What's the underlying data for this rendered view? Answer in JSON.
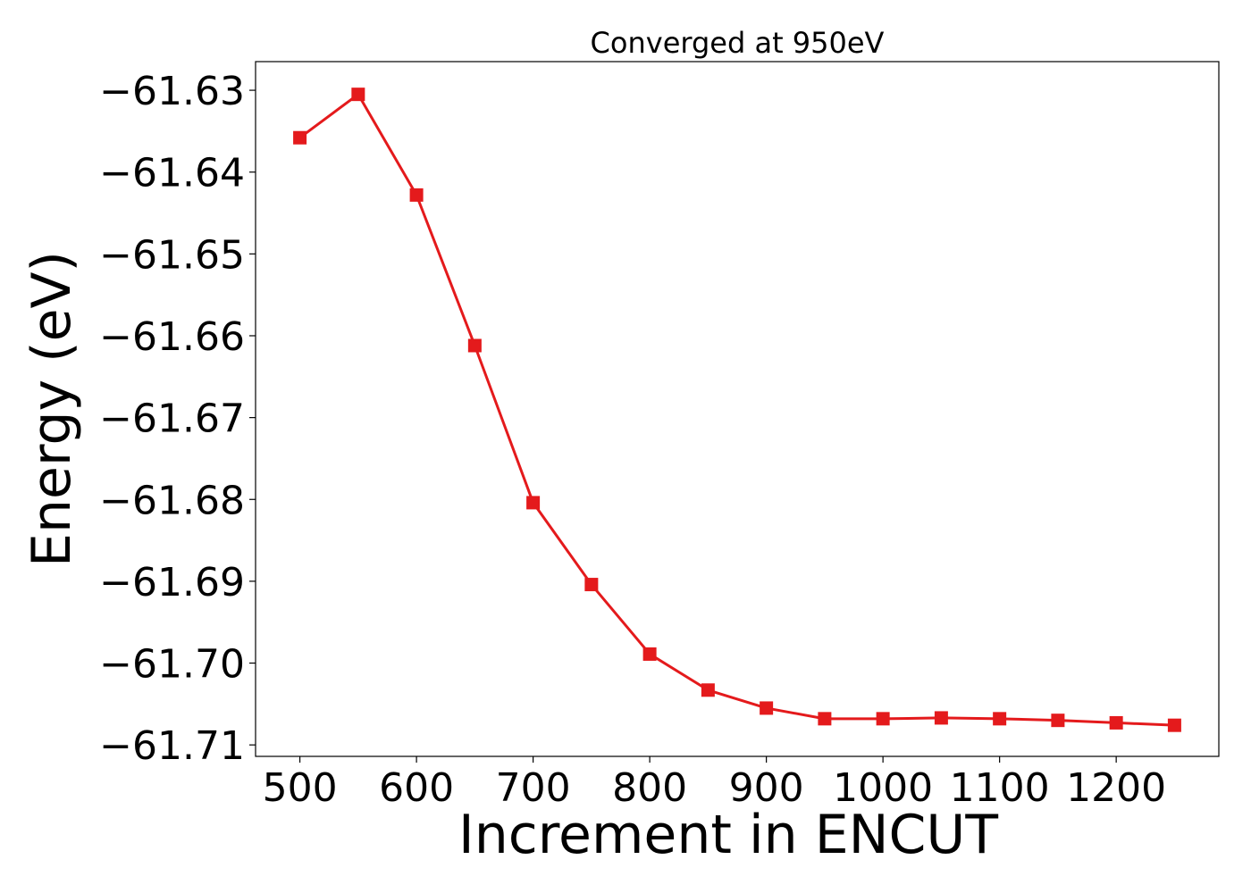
{
  "chart_data": {
    "type": "line",
    "title": "Converged at 950eV",
    "xlabel": "Increment in ENCUT",
    "ylabel": "Energy (eV)",
    "xlim": [
      462,
      1288
    ],
    "ylim": [
      -61.7114,
      -61.6265
    ],
    "x_ticks": [
      500,
      600,
      700,
      800,
      900,
      1000,
      1100,
      1200
    ],
    "x_tick_labels": [
      "500",
      "600",
      "700",
      "800",
      "900",
      "1000",
      "1100",
      "1200"
    ],
    "y_ticks": [
      -61.63,
      -61.64,
      -61.65,
      -61.66,
      -61.67,
      -61.68,
      -61.69,
      -61.7,
      -61.71
    ],
    "y_tick_labels": [
      "−61.63",
      "−61.64",
      "−61.65",
      "−61.66",
      "−61.67",
      "−61.68",
      "−61.69",
      "−61.70",
      "−61.71"
    ],
    "grid": false,
    "series": [
      {
        "color": "#e41a1c",
        "marker": "square",
        "x": [
          500,
          550,
          600,
          650,
          700,
          750,
          800,
          850,
          900,
          950,
          1000,
          1050,
          1100,
          1150,
          1200,
          1250
        ],
        "y": [
          -61.6358,
          -61.6305,
          -61.6428,
          -61.6612,
          -61.6804,
          -61.6904,
          -61.6989,
          -61.7033,
          -61.7055,
          -61.7068,
          -61.7068,
          -61.7067,
          -61.7068,
          -61.707,
          -61.7073,
          -61.7076
        ]
      }
    ]
  }
}
